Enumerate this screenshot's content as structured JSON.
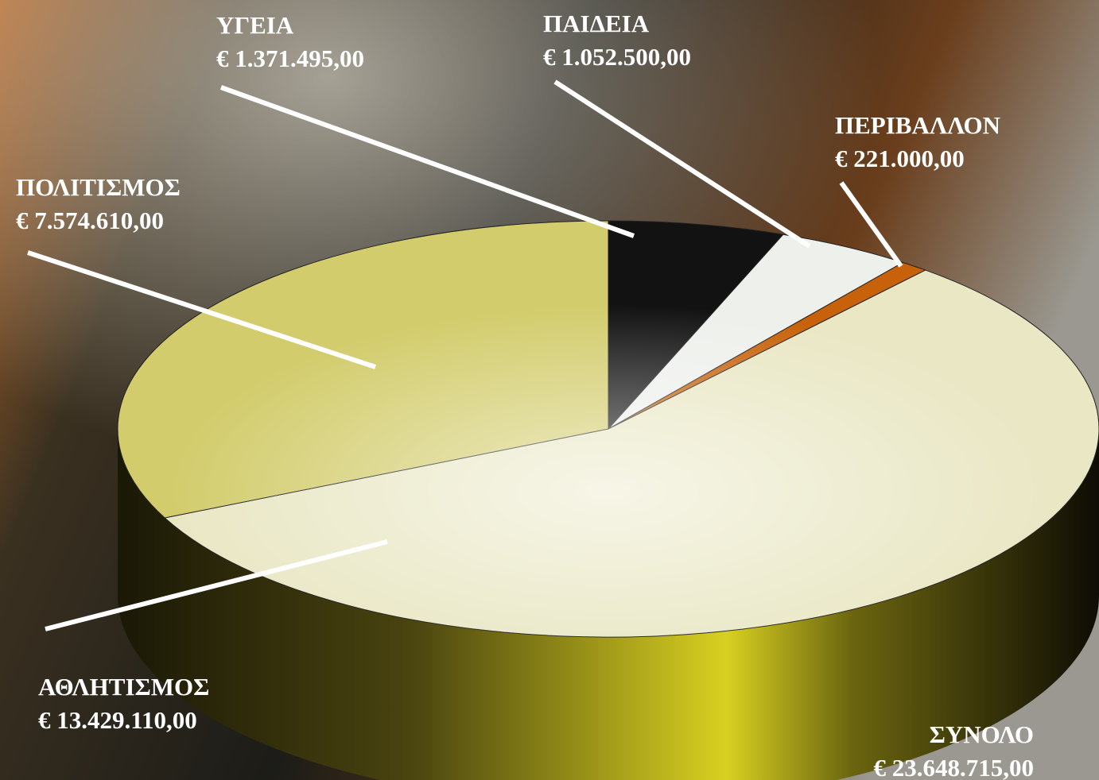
{
  "chart_data": {
    "type": "pie",
    "categories": [
      "ΥΓΕΙΑ",
      "ΠΑΙΔΕΙΑ",
      "ΠΕΡΙΒΑΛΛΟΝ",
      "ΑΘΛΗΤΙΣΜΟΣ",
      "ΠΟΛΙΤΙΣΜΟΣ"
    ],
    "values": [
      1371495,
      1052500,
      221000,
      13429110,
      7574610
    ],
    "value_labels": [
      "€ 1.371.495,00",
      "€ 1.052.500,00",
      "€ 221.000,00",
      "€ 13.429.110,00",
      "€ 7.574.610,00"
    ],
    "colors": [
      "#121212",
      "#eef0ec",
      "#c8620a",
      "#e9e7c4",
      "#d2cc6c"
    ],
    "total_label": "ΣΥΝΟΛΟ",
    "total": 23648715,
    "total_value_label": "€ 23.648.715,00"
  }
}
